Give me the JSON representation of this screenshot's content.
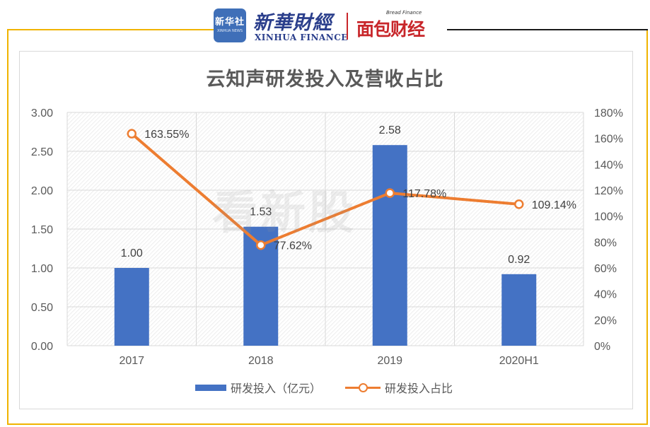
{
  "header": {
    "logo_cn": "新华社",
    "logo_en": "XINHUA NEWS",
    "brand_cn": "新華財經",
    "brand_en": "XINHUA FINANCE",
    "brand2_en": "Bread Finance",
    "brand2_cn": "面包财经"
  },
  "watermark": "看新股",
  "colors": {
    "frame": "#f0b300",
    "bar": "#4472c4",
    "line": "#ed7d31",
    "grid": "#d9d9d9"
  },
  "chart_data": {
    "type": "bar",
    "title": "云知声研发投入及营收占比",
    "categories": [
      "2017",
      "2018",
      "2019",
      "2020H1"
    ],
    "series": [
      {
        "name": "研发投入（亿元）",
        "type": "bar",
        "axis": "left",
        "values": [
          1.0,
          1.53,
          2.58,
          0.92
        ],
        "labels": [
          "1.00",
          "1.53",
          "2.58",
          "0.92"
        ]
      },
      {
        "name": "研发投入占比",
        "type": "line",
        "axis": "right",
        "values": [
          163.55,
          77.62,
          117.78,
          109.14
        ],
        "labels": [
          "163.55%",
          "77.62%",
          "117.78%",
          "109.14%"
        ]
      }
    ],
    "y_left": {
      "range": [
        0,
        3.0
      ],
      "ticks": [
        "0.00",
        "0.50",
        "1.00",
        "1.50",
        "2.00",
        "2.50",
        "3.00"
      ]
    },
    "y_right": {
      "range": [
        0,
        180
      ],
      "ticks": [
        "0%",
        "20%",
        "40%",
        "60%",
        "80%",
        "100%",
        "120%",
        "140%",
        "160%",
        "180%"
      ]
    },
    "grid": true,
    "legend_position": "bottom"
  }
}
